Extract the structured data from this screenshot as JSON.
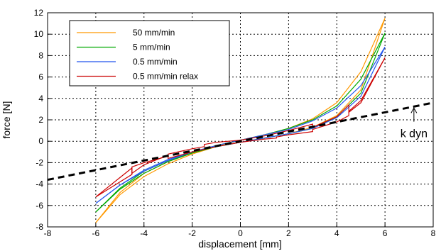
{
  "chart_data": {
    "type": "line",
    "title": "",
    "xlabel": "displacement [mm]",
    "ylabel": "force [N]",
    "xlim": [
      -8,
      8
    ],
    "ylim": [
      -8,
      12
    ],
    "xticks": [
      -8,
      -6,
      -4,
      -2,
      0,
      2,
      4,
      6,
      8
    ],
    "yticks": [
      -8,
      -6,
      -4,
      -2,
      0,
      2,
      4,
      6,
      8,
      10,
      12
    ],
    "grid": true,
    "legend_position": "top-left",
    "series": [
      {
        "name": "50 mm/min",
        "color": "#ff9900",
        "loading": {
          "x": [
            -6,
            -5,
            -4,
            -3,
            -2,
            -1,
            0,
            1,
            2,
            3,
            4,
            5,
            6
          ],
          "y": [
            -7.6,
            -5.0,
            -3.3,
            -2.1,
            -1.2,
            -0.5,
            0.1,
            0.6,
            1.2,
            2.1,
            3.6,
            6.5,
            11.5
          ]
        },
        "unloading": {
          "x": [
            6,
            5,
            4,
            3,
            2,
            1,
            0,
            -1,
            -2,
            -3,
            -4,
            -5,
            -6
          ],
          "y": [
            11.5,
            4.8,
            2.4,
            1.3,
            0.7,
            0.3,
            -0.1,
            -0.5,
            -1.1,
            -1.9,
            -3.0,
            -4.8,
            -7.6
          ]
        }
      },
      {
        "name": "5 mm/min",
        "color": "#00aa00",
        "loading": {
          "x": [
            -6,
            -5,
            -4,
            -3,
            -2,
            -1,
            0,
            1,
            2,
            3,
            4,
            5,
            6
          ],
          "y": [
            -6.6,
            -4.5,
            -3.0,
            -1.9,
            -1.1,
            -0.4,
            0.1,
            0.6,
            1.2,
            2.0,
            3.3,
            5.8,
            10.1
          ]
        },
        "unloading": {
          "x": [
            6,
            5,
            4,
            3,
            2,
            1,
            0,
            -1,
            -2,
            -3,
            -4,
            -5,
            -6
          ],
          "y": [
            10.1,
            4.5,
            2.3,
            1.2,
            0.7,
            0.3,
            -0.1,
            -0.5,
            -1.1,
            -1.8,
            -2.8,
            -4.4,
            -6.6
          ]
        }
      },
      {
        "name": "0.5 mm/min",
        "color": "#2255ee",
        "loading": {
          "x": [
            -6,
            -5,
            -4,
            -3,
            -2,
            -1,
            0,
            1,
            2,
            3,
            4,
            5,
            6
          ],
          "y": [
            -5.8,
            -4.1,
            -2.8,
            -1.8,
            -1.0,
            -0.4,
            0.1,
            0.6,
            1.1,
            1.9,
            3.1,
            5.2,
            8.8
          ]
        },
        "unloading": {
          "x": [
            6,
            5,
            4,
            3,
            2,
            1,
            0,
            -1,
            -2,
            -3,
            -4,
            -5,
            -6
          ],
          "y": [
            8.8,
            4.2,
            2.2,
            1.2,
            0.7,
            0.3,
            -0.1,
            -0.5,
            -1.0,
            -1.7,
            -2.7,
            -4.1,
            -5.8
          ]
        }
      },
      {
        "name": "0.5 mm/min relax",
        "color": "#cc0000",
        "loading": {
          "x": [
            -6,
            -5,
            -4.5,
            -4.5,
            -4,
            -3,
            -3,
            -2,
            -1.5,
            -1.5,
            -1,
            0,
            1,
            2,
            3,
            3,
            4,
            4.5,
            4.5,
            5,
            6
          ],
          "y": [
            -5.2,
            -3.8,
            -3.1,
            -2.4,
            -2.0,
            -1.4,
            -1.2,
            -0.7,
            -0.5,
            -0.3,
            -0.1,
            0.1,
            0.5,
            1.0,
            1.6,
            1.3,
            2.3,
            3.4,
            2.7,
            3.6,
            7.8
          ]
        },
        "unloading": {
          "x": [
            6,
            5,
            4.5,
            4.5,
            4,
            3,
            3,
            2,
            1.5,
            1.5,
            1,
            0,
            -1,
            -2,
            -3,
            -3,
            -4,
            -4.5,
            -4.5,
            -5,
            -6
          ],
          "y": [
            7.8,
            3.8,
            2.8,
            2.4,
            1.8,
            1.1,
            0.9,
            0.6,
            0.4,
            0.3,
            0.2,
            -0.1,
            -0.5,
            -1.0,
            -1.6,
            -1.3,
            -2.2,
            -3.0,
            -2.5,
            -3.4,
            -5.2
          ]
        }
      }
    ],
    "reference_line": {
      "name": "k dyn",
      "x": [
        -8,
        8
      ],
      "y": [
        -3.6,
        3.6
      ],
      "color": "#000000",
      "style": "dashed"
    },
    "annotation": {
      "text": "k dyn",
      "arrow_to": {
        "x": 7.2,
        "y": 3.1
      },
      "text_at": {
        "x": 7.2,
        "y": 0.5
      }
    }
  }
}
